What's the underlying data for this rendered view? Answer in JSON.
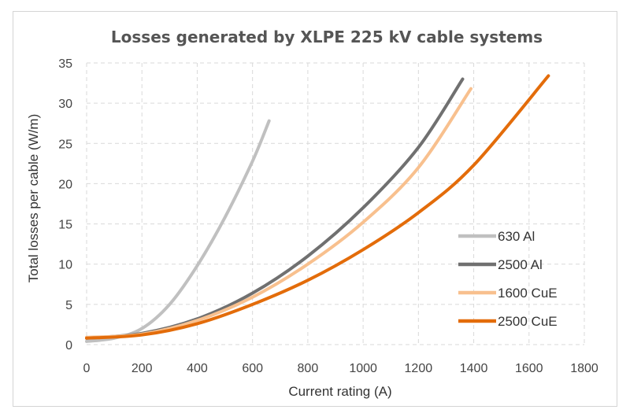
{
  "chart_data": {
    "type": "line",
    "title": "Losses generated by XLPE 225 kV cable systems",
    "xlabel": "Current rating (A)",
    "ylabel": "Total losses per cable (W/m)",
    "xlim": [
      0,
      1800
    ],
    "ylim": [
      0,
      35
    ],
    "x_ticks": [
      0,
      200,
      400,
      600,
      800,
      1000,
      1200,
      1400,
      1600,
      1800
    ],
    "y_ticks": [
      0,
      5,
      10,
      15,
      20,
      25,
      30,
      35
    ],
    "grid": true,
    "legend_position": "right",
    "series": [
      {
        "name": "630 Al",
        "color": "#c0c0c0",
        "x": [
          0,
          100,
          200,
          300,
          400,
          500,
          600,
          660
        ],
        "y": [
          0.4,
          0.8,
          2.0,
          5.0,
          9.8,
          15.8,
          22.8,
          27.8
        ]
      },
      {
        "name": "2500 Al",
        "color": "#707070",
        "x": [
          0,
          200,
          400,
          600,
          800,
          1000,
          1200,
          1360
        ],
        "y": [
          0.8,
          1.4,
          3.2,
          6.4,
          11.0,
          17.0,
          24.5,
          33.0
        ]
      },
      {
        "name": "1600 CuE",
        "color": "#f8c08e",
        "x": [
          0,
          200,
          400,
          600,
          800,
          1000,
          1200,
          1390
        ],
        "y": [
          0.9,
          1.3,
          3.0,
          5.9,
          10.0,
          15.2,
          22.0,
          31.8
        ]
      },
      {
        "name": "2500 CuE",
        "color": "#e36c0a",
        "x": [
          0,
          200,
          400,
          600,
          800,
          1000,
          1200,
          1400,
          1670
        ],
        "y": [
          0.8,
          1.2,
          2.6,
          5.0,
          8.0,
          11.8,
          16.4,
          22.3,
          33.4
        ]
      }
    ]
  }
}
